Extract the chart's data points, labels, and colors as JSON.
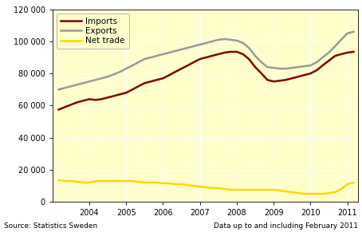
{
  "title": "",
  "xlabel": "",
  "ylabel": "",
  "background_color": "#ffffcc",
  "outer_background": "#ffffff",
  "ylim": [
    0,
    120000
  ],
  "yticks": [
    0,
    20000,
    40000,
    60000,
    80000,
    100000,
    120000
  ],
  "ytick_labels": [
    "0",
    "20 000",
    "40 000",
    "60 000",
    "80 000",
    "100 000",
    "120 000"
  ],
  "source_text": "Source: Statistics Sweden",
  "data_text": "Data up to and including February 2011",
  "legend_entries": [
    "Imports",
    "Exports",
    "Net trade"
  ],
  "imports_color": "#800000",
  "exports_color": "#999999",
  "nettrade_color": "#ffd700",
  "line_width": 1.8,
  "x_values": [
    2003.17,
    2003.33,
    2003.5,
    2003.67,
    2003.83,
    2004.0,
    2004.17,
    2004.33,
    2004.5,
    2004.67,
    2004.83,
    2005.0,
    2005.17,
    2005.33,
    2005.5,
    2005.67,
    2005.83,
    2006.0,
    2006.17,
    2006.33,
    2006.5,
    2006.67,
    2006.83,
    2007.0,
    2007.17,
    2007.33,
    2007.5,
    2007.67,
    2007.83,
    2008.0,
    2008.17,
    2008.33,
    2008.5,
    2008.67,
    2008.83,
    2009.0,
    2009.17,
    2009.33,
    2009.5,
    2009.67,
    2009.83,
    2010.0,
    2010.17,
    2010.33,
    2010.5,
    2010.67,
    2010.83,
    2011.0,
    2011.17
  ],
  "imports": [
    57500,
    59000,
    60500,
    62000,
    63000,
    64000,
    63500,
    64000,
    65000,
    66000,
    67000,
    68000,
    70000,
    72000,
    74000,
    75000,
    76000,
    77000,
    79000,
    81000,
    83000,
    85000,
    87000,
    89000,
    90000,
    91000,
    92000,
    93000,
    93500,
    93500,
    92000,
    89000,
    84000,
    80000,
    76000,
    75000,
    75500,
    76000,
    77000,
    78000,
    79000,
    80000,
    82000,
    85000,
    88000,
    91000,
    92000,
    93000,
    93500
  ],
  "exports": [
    70000,
    71000,
    72000,
    73000,
    74000,
    75000,
    76000,
    77000,
    78000,
    79500,
    81000,
    83000,
    85000,
    87000,
    89000,
    90000,
    91000,
    92000,
    93000,
    94000,
    95000,
    96000,
    97000,
    98000,
    99000,
    100000,
    101000,
    101500,
    101000,
    100500,
    99000,
    96000,
    91000,
    87000,
    84000,
    83500,
    83000,
    83000,
    83500,
    84000,
    84500,
    85000,
    87000,
    90000,
    93000,
    97000,
    101000,
    105000,
    106000
  ],
  "nettrade": [
    13500,
    13000,
    13000,
    12500,
    12000,
    12000,
    13000,
    13000,
    13000,
    13000,
    13000,
    13000,
    13000,
    12500,
    12000,
    12000,
    12000,
    11500,
    11500,
    11000,
    11000,
    10500,
    10000,
    9500,
    9000,
    8500,
    8500,
    8000,
    7500,
    7500,
    7500,
    7500,
    7500,
    7500,
    7500,
    7500,
    7000,
    6500,
    6000,
    5500,
    5000,
    5000,
    5000,
    5000,
    5500,
    6000,
    8000,
    11000,
    12000
  ],
  "xtick_positions": [
    2004,
    2005,
    2006,
    2007,
    2008,
    2009,
    2010,
    2011
  ],
  "xtick_labels": [
    "2004",
    "2005",
    "2006",
    "2007",
    "2008",
    "2009",
    "2010",
    "2011"
  ],
  "xlim": [
    2003.0,
    2011.3
  ]
}
